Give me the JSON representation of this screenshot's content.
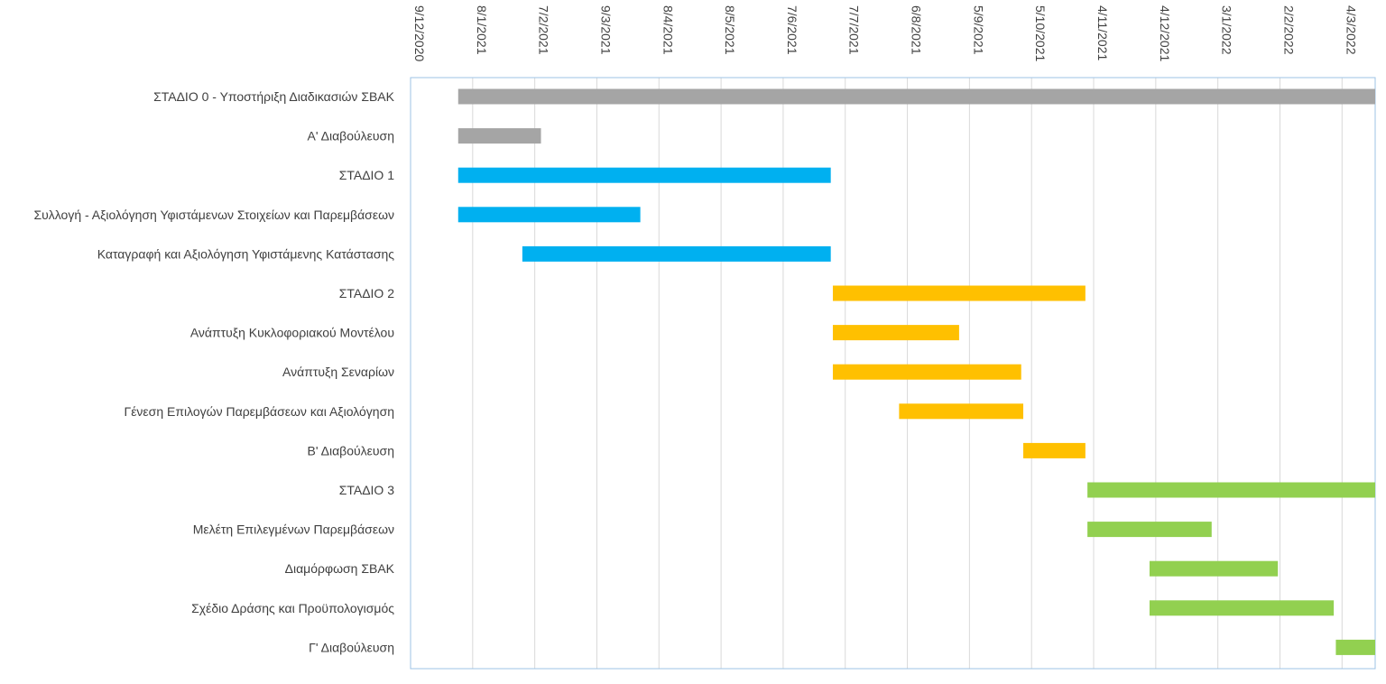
{
  "chart_data": {
    "type": "bar",
    "orientation": "horizontal",
    "variant": "gantt",
    "title": "",
    "xlabel": "",
    "ylabel": "",
    "x_axis_position": "top",
    "grid": "vertical",
    "legend": "none",
    "tick_labels": [
      "9/12/2020",
      "8/1/2021",
      "7/2/2021",
      "9/3/2021",
      "8/4/2021",
      "8/5/2021",
      "7/6/2021",
      "7/7/2021",
      "6/8/2021",
      "5/9/2021",
      "5/10/2021",
      "4/11/2021",
      "4/12/2021",
      "3/1/2022",
      "2/2/2022",
      "4/3/2022"
    ],
    "tick_dates": [
      "2020-12-09",
      "2021-01-08",
      "2021-02-07",
      "2021-03-09",
      "2021-04-08",
      "2021-05-08",
      "2021-06-07",
      "2021-07-07",
      "2021-08-06",
      "2021-09-05",
      "2021-10-05",
      "2021-11-04",
      "2021-12-04",
      "2022-01-03",
      "2022-02-02",
      "2022-03-04"
    ],
    "xlim": [
      "2020-12-09",
      "2022-03-20"
    ],
    "tasks": [
      {
        "label": "ΣΤΑΔΙΟ 0 - Υποστήριξη Διαδικασιών ΣΒΑΚ",
        "start": "2021-01-01",
        "end": "2022-03-20",
        "color": "#a5a5a5"
      },
      {
        "label": "Α' Διαβούλευση",
        "start": "2021-01-01",
        "end": "2021-02-10",
        "color": "#a5a5a5"
      },
      {
        "label": "ΣΤΑΔΙΟ 1",
        "start": "2021-01-01",
        "end": "2021-06-30",
        "color": "#00b0f0"
      },
      {
        "label": "Συλλογή - Αξιολόγηση Υφιστάμενων Στοιχείων και Παρεμβάσεων",
        "start": "2021-01-01",
        "end": "2021-03-30",
        "color": "#00b0f0"
      },
      {
        "label": "Καταγραφή και Αξιολόγηση Υφιστάμενης Κατάστασης",
        "start": "2021-02-01",
        "end": "2021-06-30",
        "color": "#00b0f0"
      },
      {
        "label": "ΣΤΑΔΙΟ 2",
        "start": "2021-07-01",
        "end": "2021-10-31",
        "color": "#ffc000"
      },
      {
        "label": "Ανάπτυξη Κυκλοφοριακού Μοντέλου",
        "start": "2021-07-01",
        "end": "2021-08-31",
        "color": "#ffc000"
      },
      {
        "label": "Ανάπτυξη Σεναρίων",
        "start": "2021-07-01",
        "end": "2021-09-30",
        "color": "#ffc000"
      },
      {
        "label": "Γένεση Επιλογών Παρεμβάσεων και Αξιολόγηση",
        "start": "2021-08-02",
        "end": "2021-10-01",
        "color": "#ffc000"
      },
      {
        "label": "Β' Διαβούλευση",
        "start": "2021-10-01",
        "end": "2021-10-31",
        "color": "#ffc000"
      },
      {
        "label": "ΣΤΑΔΙΟ 3",
        "start": "2021-11-01",
        "end": "2022-03-20",
        "color": "#92d050"
      },
      {
        "label": "Μελέτη Επιλεγμένων Παρεμβάσεων",
        "start": "2021-11-01",
        "end": "2021-12-31",
        "color": "#92d050"
      },
      {
        "label": "Διαμόρφωση ΣΒΑΚ",
        "start": "2021-12-01",
        "end": "2022-02-01",
        "color": "#92d050"
      },
      {
        "label": "Σχέδιο Δράσης και Προϋπολογισμός",
        "start": "2021-12-01",
        "end": "2022-02-28",
        "color": "#92d050"
      },
      {
        "label": "Γ' Διαβούλευση",
        "start": "2022-03-01",
        "end": "2022-03-20",
        "color": "#92d050"
      }
    ],
    "colors": {
      "stage0": "#a5a5a5",
      "stage1": "#00b0f0",
      "stage2": "#ffc000",
      "stage3": "#92d050",
      "gridline": "#d9d9d9",
      "plot_border": "#9dc3e6",
      "text": "#404040"
    }
  }
}
